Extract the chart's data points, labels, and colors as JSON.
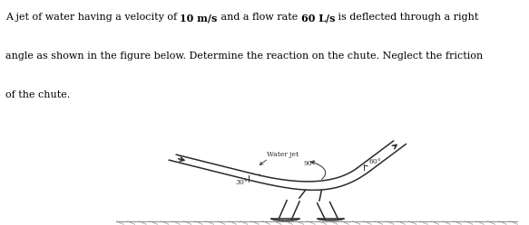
{
  "text_line1_a": "A jet of water having a velocity of ",
  "text_line1_b": "10 m/s",
  "text_line1_c": " and a flow rate ",
  "text_line1_d": "60 L/s",
  "text_line1_e": " is deflected through a right",
  "text_line2": "angle as shown in the figure below. Determine the reaction on the chute. Neglect the friction",
  "text_line3": "of the chute.",
  "label_water_jet": "Water jet",
  "label_90": "90°",
  "label_30": "30°",
  "label_60": "60°",
  "bg_color": "#ffffff",
  "line_color": "#2a2a2a",
  "fig_width": 5.83,
  "fig_height": 2.49,
  "dpi": 100,
  "text_fontsize": 8.0,
  "label_fontsize": 5.5
}
